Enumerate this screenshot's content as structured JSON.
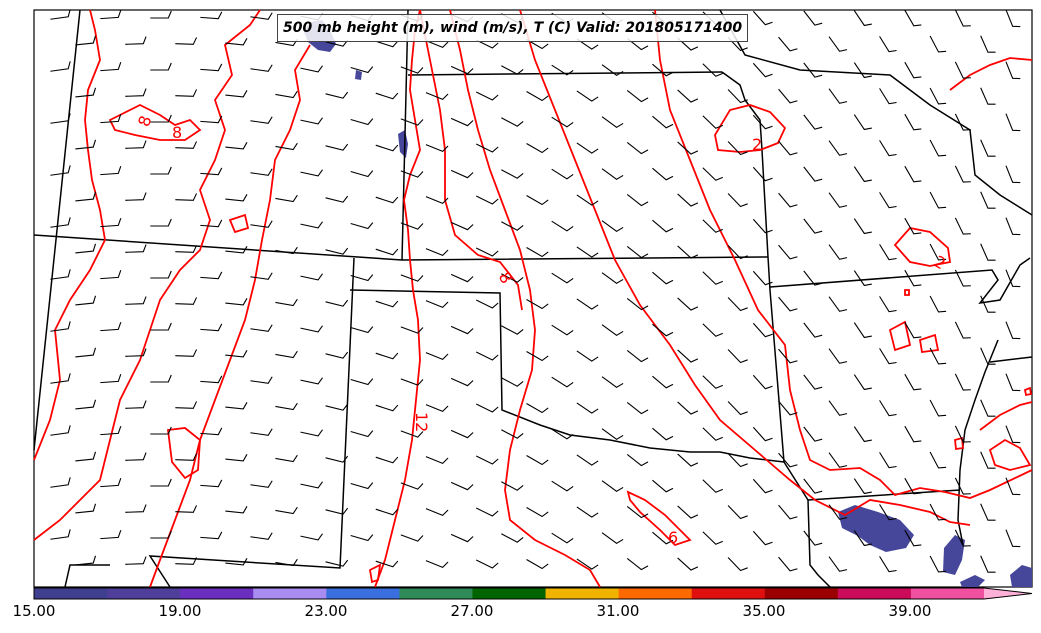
{
  "title": "500 mb height (m), wind (m/s), T (C) Valid: 201805171400",
  "contour_color": "#ff0000",
  "contour_labels": [
    "8",
    "8",
    "2",
    "2",
    "8",
    "12",
    "6"
  ],
  "colorbar": {
    "tick_labels": [
      "15.00",
      "19.00",
      "23.00",
      "27.00",
      "31.00",
      "35.00",
      "39.00"
    ],
    "colors": [
      "#3f3f8f",
      "#4f3f9a",
      "#6a2fbf",
      "#a98cf0",
      "#3b6fe0",
      "#2e8b57",
      "#006400",
      "#f0b400",
      "#ff6a00",
      "#e01010",
      "#9b0000",
      "#cc0a5a",
      "#f050a0",
      "#ffb0d8"
    ],
    "extend": "max"
  },
  "wind_field_color": "#000000",
  "shaded_feature_color": "#46469a"
}
